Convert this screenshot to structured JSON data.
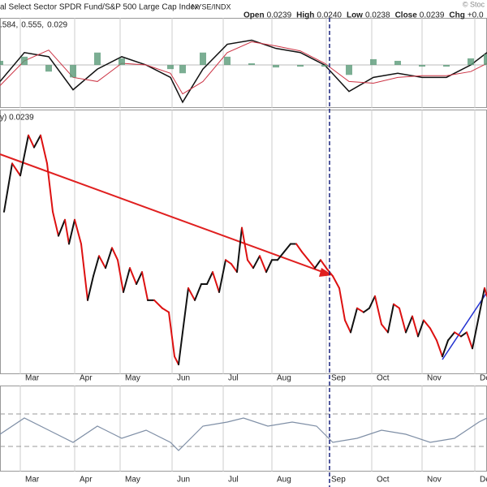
{
  "header": {
    "title": "al Select Sector SPDR Fund/S&P 500 Large Cap Index",
    "exchange": "NYSE/INDX",
    "quote": [
      {
        "label": "Open",
        "value": "0.0239"
      },
      {
        "label": "High",
        "value": "0.0240"
      },
      {
        "label": "Low",
        "value": "0.0238"
      },
      {
        "label": "Close",
        "value": "0.0239"
      },
      {
        "label": "Chg",
        "value": "+0.0"
      }
    ],
    "logo": "© Stoc"
  },
  "chart_data": [
    {
      "type": "macd",
      "legend": [
        ".584,",
        "0.555,",
        "0.029"
      ],
      "x": [
        0,
        30,
        60,
        90,
        120,
        150,
        180,
        210,
        225,
        250,
        280,
        310,
        340,
        370,
        400,
        430,
        460,
        490,
        520,
        550,
        580,
        600
      ],
      "series": [
        {
          "name": "MACD",
          "color": "#111111",
          "values": [
            -0.2,
            0.15,
            0.1,
            -0.3,
            -0.05,
            0.1,
            0,
            -0.15,
            -0.45,
            -0.05,
            0.25,
            0.3,
            0.2,
            0.15,
            0,
            -0.32,
            -0.15,
            -0.1,
            -0.15,
            -0.15,
            0,
            0.15
          ]
        },
        {
          "name": "Signal",
          "color": "#cc3344",
          "values": [
            -0.25,
            0.05,
            0.18,
            -0.15,
            -0.2,
            0.02,
            0,
            -0.1,
            -0.35,
            -0.2,
            0.15,
            0.28,
            0.23,
            0.17,
            0.02,
            -0.2,
            -0.22,
            -0.15,
            -0.13,
            -0.13,
            -0.08,
            0.02
          ]
        },
        {
          "name": "Histogram",
          "color": "#5a9a78",
          "bars": true,
          "values": [
            0.05,
            0.1,
            -0.08,
            -0.15,
            0.15,
            0.08,
            0,
            -0.05,
            -0.1,
            0.15,
            0.1,
            0.02,
            -0.03,
            -0.02,
            -0.02,
            -0.12,
            0.07,
            0.05,
            -0.02,
            -0.02,
            0.08,
            0.13
          ]
        }
      ],
      "xlim": [
        0,
        600
      ],
      "ylim": [
        -0.5,
        0.55
      ]
    },
    {
      "type": "price",
      "legend": "y) 0.0239",
      "up_color": "#111111",
      "down_color": "#dd1111",
      "x": [
        5,
        15,
        25,
        35,
        42,
        50,
        58,
        65,
        72,
        80,
        85,
        92,
        100,
        108,
        115,
        122,
        130,
        138,
        145,
        152,
        160,
        168,
        175,
        182,
        190,
        200,
        208,
        215,
        220,
        225,
        232,
        240,
        248,
        255,
        262,
        270,
        278,
        285,
        292,
        298,
        305,
        312,
        320,
        328,
        335,
        342,
        350,
        358,
        365,
        372,
        380,
        388,
        395,
        402,
        410,
        418,
        425,
        432,
        440,
        448,
        455,
        462,
        470,
        478,
        485,
        492,
        500,
        508,
        515,
        522,
        530,
        538,
        545,
        552,
        560,
        568,
        575,
        582,
        590,
        597,
        600
      ],
      "values": [
        0.0261,
        0.0273,
        0.027,
        0.028,
        0.0277,
        0.028,
        0.0273,
        0.0261,
        0.0255,
        0.0259,
        0.0253,
        0.0259,
        0.0253,
        0.0239,
        0.0245,
        0.025,
        0.0247,
        0.0252,
        0.0249,
        0.0241,
        0.0247,
        0.0243,
        0.0246,
        0.0239,
        0.0239,
        0.0237,
        0.0236,
        0.0225,
        0.0223,
        0.0231,
        0.0242,
        0.0239,
        0.0243,
        0.0243,
        0.0246,
        0.0241,
        0.0249,
        0.0248,
        0.0246,
        0.0257,
        0.0249,
        0.0247,
        0.025,
        0.0246,
        0.0249,
        0.0249,
        0.0251,
        0.0253,
        0.0253,
        0.0251,
        0.0249,
        0.0247,
        0.0249,
        0.0247,
        0.0245,
        0.0242,
        0.0234,
        0.0231,
        0.0237,
        0.0236,
        0.0237,
        0.024,
        0.0233,
        0.0231,
        0.0238,
        0.0237,
        0.0231,
        0.0235,
        0.023,
        0.0234,
        0.0232,
        0.0229,
        0.0225,
        0.0229,
        0.0231,
        0.023,
        0.0231,
        0.0227,
        0.0235,
        0.0242,
        0.024
      ],
      "xlim": [
        0,
        600
      ],
      "ylim": [
        0.0221,
        0.0286
      ],
      "xticks": [
        {
          "value": 25,
          "label": "Mar"
        },
        {
          "value": 92,
          "label": "Apr"
        },
        {
          "value": 148,
          "label": "May"
        },
        {
          "value": 212,
          "label": "Jun"
        },
        {
          "value": 275,
          "label": "Jul"
        },
        {
          "value": 335,
          "label": "Aug"
        },
        {
          "value": 402,
          "label": "Sep"
        },
        {
          "value": 458,
          "label": "Oct"
        },
        {
          "value": 520,
          "label": "Nov"
        },
        {
          "value": 585,
          "label": "Dec"
        }
      ]
    },
    {
      "type": "oscillator",
      "color": "#7f8fa6",
      "x": [
        0,
        30,
        60,
        90,
        120,
        150,
        180,
        210,
        220,
        250,
        280,
        300,
        330,
        360,
        390,
        410,
        440,
        470,
        500,
        530,
        560,
        590,
        600
      ],
      "values": [
        45,
        65,
        50,
        35,
        55,
        40,
        50,
        35,
        25,
        55,
        60,
        65,
        55,
        60,
        55,
        35,
        40,
        50,
        45,
        35,
        40,
        60,
        65
      ],
      "xlim": [
        0,
        600
      ],
      "ylim": [
        0,
        100
      ],
      "levels": [
        70,
        30
      ]
    }
  ]
}
